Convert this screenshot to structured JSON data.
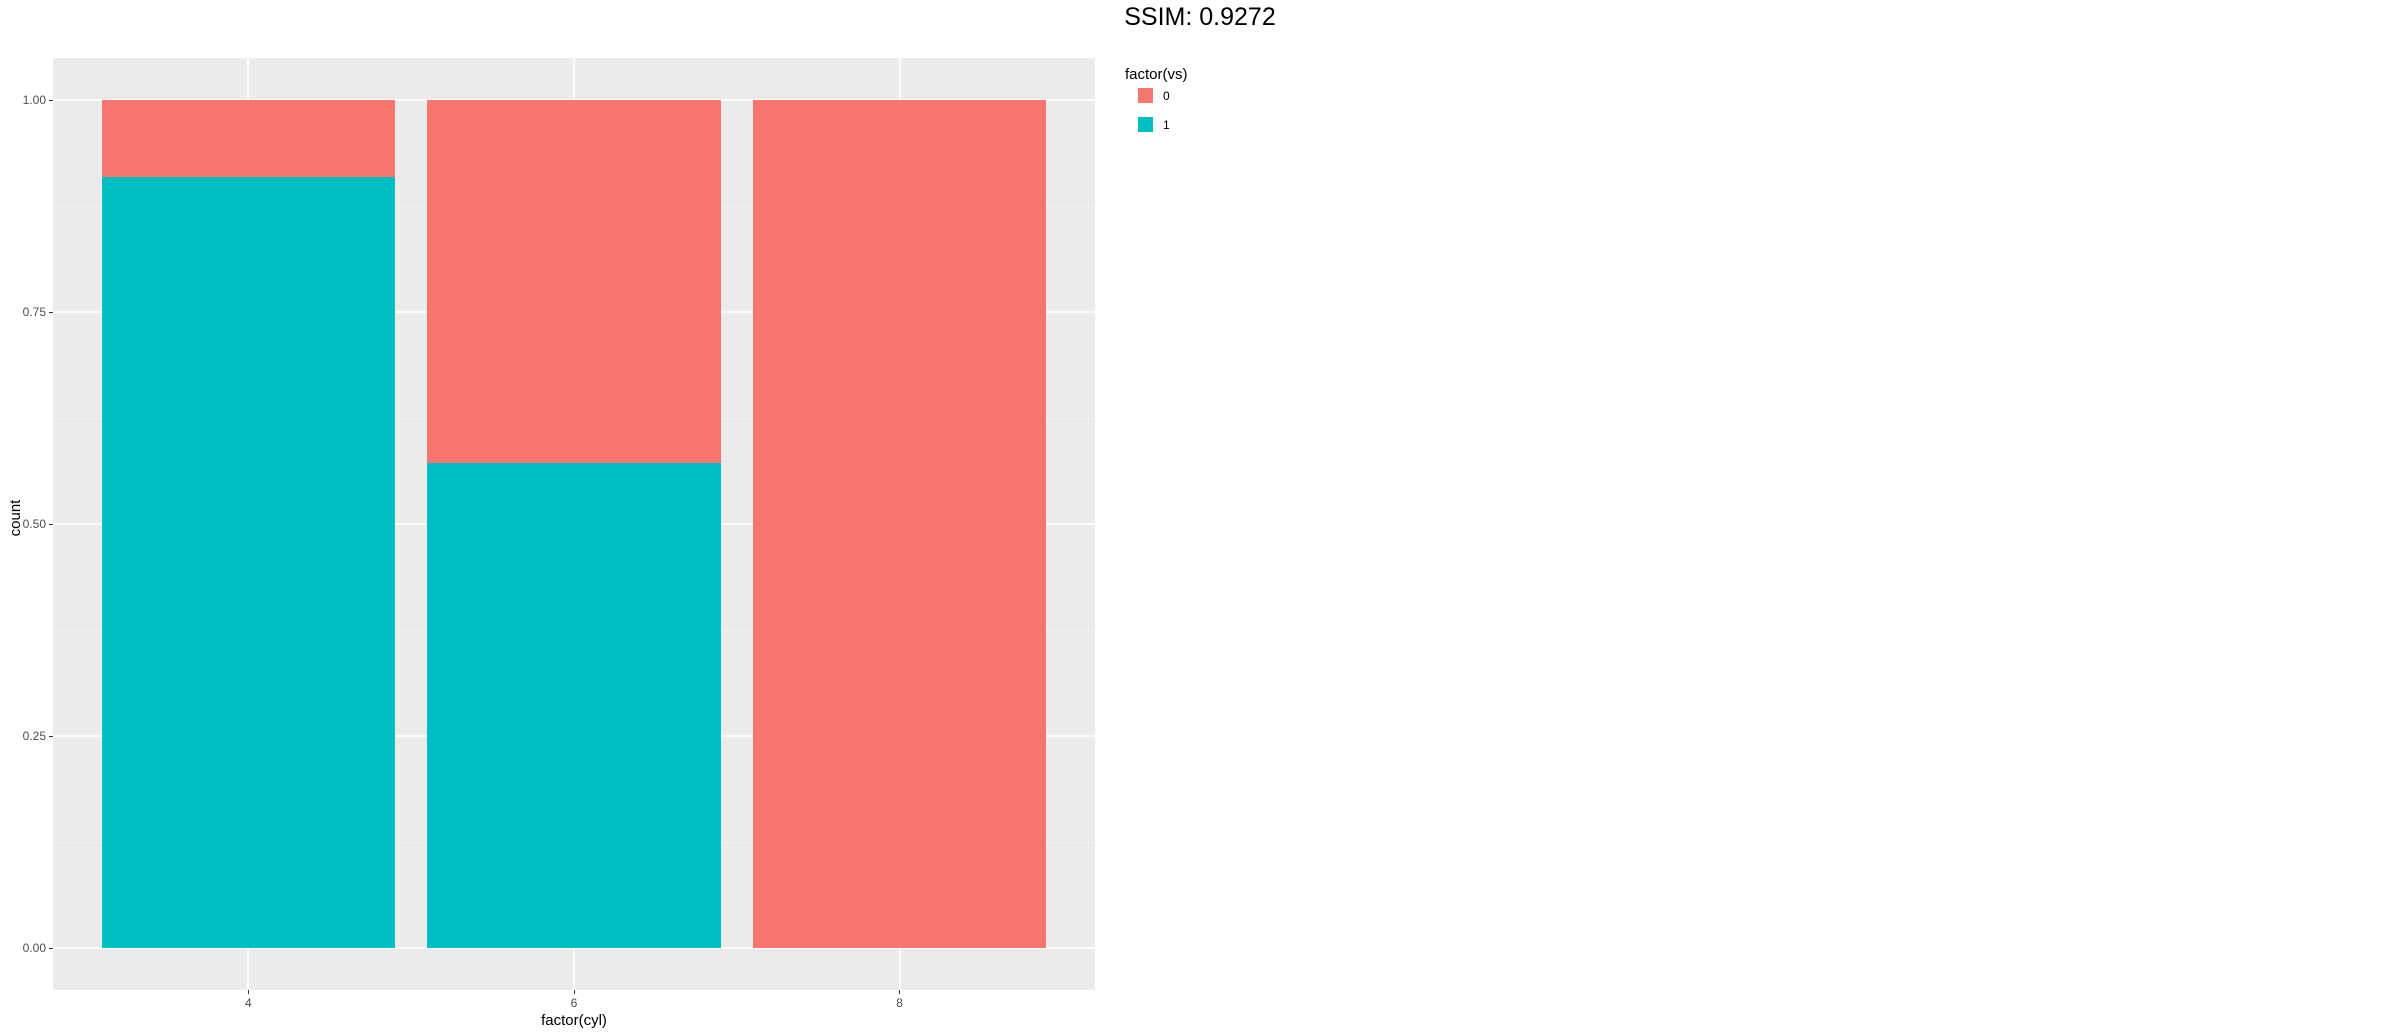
{
  "title": "SSIM: 0.9272",
  "chart_data": [
    {
      "type": "bar",
      "variant": "stacked-fill",
      "title": "",
      "xlabel": "factor(cyl)",
      "ylabel": "count",
      "categories": [
        "4",
        "6",
        "8"
      ],
      "series": [
        {
          "name": "0",
          "color": "#F8766D",
          "values": [
            0.0909,
            0.4286,
            1.0
          ]
        },
        {
          "name": "1",
          "color": "#00BFC4",
          "values": [
            0.9091,
            0.5714,
            0.0
          ]
        }
      ],
      "y_ticks": [
        {
          "label": "1.00",
          "value": 1.0
        },
        {
          "label": "0.75",
          "value": 0.75
        },
        {
          "label": "0.50",
          "value": 0.5
        },
        {
          "label": "0.25",
          "value": 0.25
        },
        {
          "label": "0.00",
          "value": 0.0
        }
      ],
      "ylim": [
        0,
        1
      ],
      "panel_bg": "#EBEBEB",
      "grid": "white major horizontal + vertical at categories, faint minors",
      "legend": {
        "title": "factor(vs)",
        "position": "right-top",
        "entries": [
          {
            "label": "0",
            "color": "#F8766D"
          },
          {
            "label": "1",
            "color": "#00BFC4"
          }
        ]
      }
    },
    {
      "type": "bar",
      "variant": "stacked-fill",
      "title": "",
      "xlabel": "factor(cyl)",
      "ylabel": "count",
      "categories": [
        "4",
        "6",
        "8"
      ],
      "series": [
        {
          "name": "0",
          "color": "#F25C56",
          "values": [
            0.0909,
            0.4286,
            1.0
          ]
        },
        {
          "name": "1",
          "color": "#1AB2B6",
          "values": [
            0.9091,
            0.5714,
            0.0
          ]
        }
      ],
      "y_ticks": [
        {
          "label": "1.00",
          "value": 1.0
        },
        {
          "label": "0.75",
          "value": 0.75
        },
        {
          "label": "0.50",
          "value": 0.5
        },
        {
          "label": "0.25",
          "value": 0.25
        },
        {
          "label": "0.00",
          "value": 0.0
        }
      ],
      "ylim": [
        0,
        1
      ],
      "panel_bg": "#E5E5E5",
      "grid": "white major horizontal + vertical at categories, visible minors",
      "legend": {
        "title": "factor(vs)",
        "position": "right-center",
        "entries": [
          {
            "label": "0",
            "color": "#F25C56"
          },
          {
            "label": "1",
            "color": "#1AB2B6"
          }
        ]
      }
    }
  ]
}
